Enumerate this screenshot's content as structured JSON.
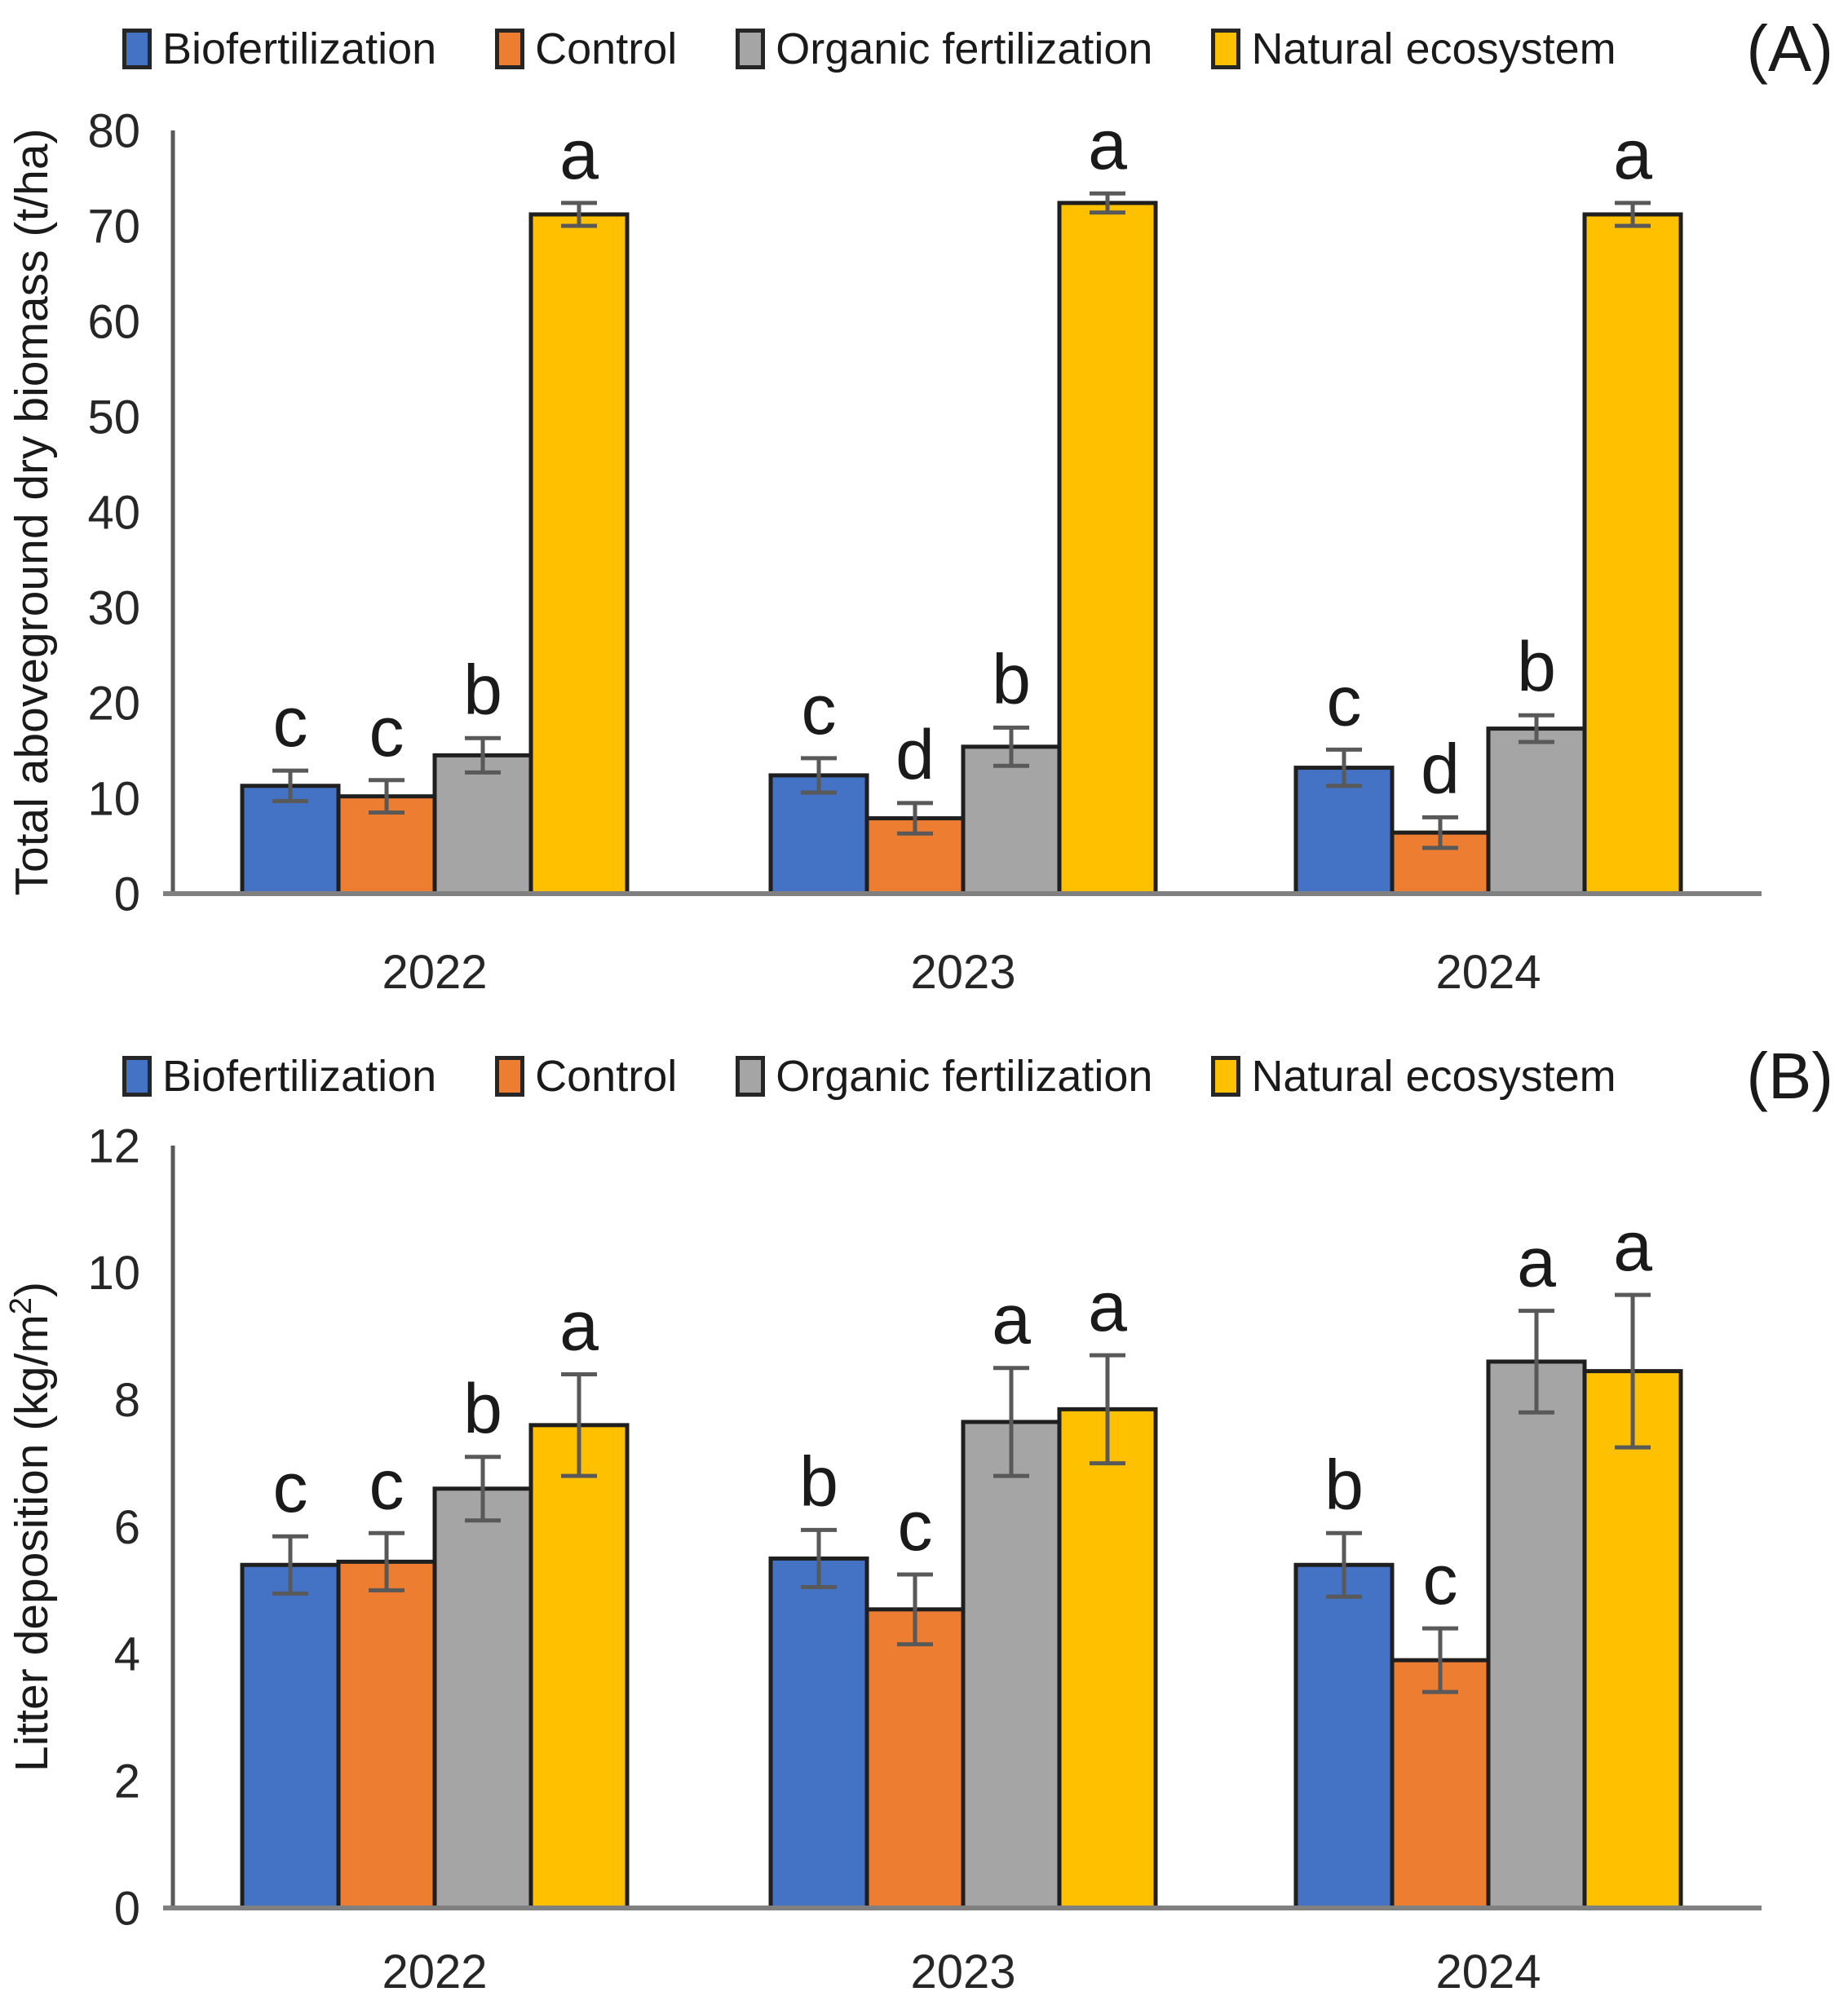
{
  "style": {
    "background": "#ffffff",
    "text_color": "#1a1a1a",
    "tick_color": "#262626",
    "y_axis_line_color": "#595959",
    "baseline_color": "#808080",
    "error_bar_color": "#595959",
    "bar_outline_color": "#1f1f1f"
  },
  "chart_data": [
    {
      "type": "bar",
      "panel_label": "(A)",
      "title": "",
      "xlabel": "",
      "ylabel": "Total aboveground dry biomass (t/ha)",
      "ylim": [
        0,
        80
      ],
      "yticks": [
        0,
        10,
        20,
        30,
        40,
        50,
        60,
        70,
        80
      ],
      "categories": [
        "2022",
        "2023",
        "2024"
      ],
      "grid": false,
      "legend_position": "top",
      "series": [
        {
          "name": "Biofertilization",
          "color": "#4472C4",
          "values": [
            11.3,
            12.4,
            13.2
          ],
          "errors": [
            1.6,
            1.8,
            1.9
          ],
          "letters": [
            "c",
            "c",
            "c"
          ]
        },
        {
          "name": "Control",
          "color": "#ED7D31",
          "values": [
            10.2,
            7.9,
            6.4
          ],
          "errors": [
            1.7,
            1.6,
            1.6
          ],
          "letters": [
            "c",
            "d",
            "d"
          ]
        },
        {
          "name": "Organic fertilization",
          "color": "#A5A5A5",
          "values": [
            14.5,
            15.4,
            17.3
          ],
          "errors": [
            1.8,
            2.0,
            1.4
          ],
          "letters": [
            "b",
            "b",
            "b"
          ]
        },
        {
          "name": "Natural ecosystem",
          "color": "#FFC000",
          "values": [
            71.2,
            72.4,
            71.2
          ],
          "errors": [
            1.2,
            1.0,
            1.2
          ],
          "letters": [
            "a",
            "a",
            "a"
          ]
        }
      ]
    },
    {
      "type": "bar",
      "panel_label": "(B)",
      "title": "",
      "xlabel": "",
      "ylabel": "Litter deposition (kg/m²)",
      "ylim": [
        0,
        12
      ],
      "yticks": [
        0,
        2,
        4,
        6,
        8,
        10,
        12
      ],
      "categories": [
        "2022",
        "2023",
        "2024"
      ],
      "grid": false,
      "legend_position": "top",
      "series": [
        {
          "name": "Biofertilization",
          "color": "#4472C4",
          "values": [
            5.4,
            5.5,
            5.4
          ],
          "errors": [
            0.45,
            0.45,
            0.5
          ],
          "letters": [
            "c",
            "b",
            "b"
          ]
        },
        {
          "name": "Control",
          "color": "#ED7D31",
          "values": [
            5.45,
            4.7,
            3.9
          ],
          "errors": [
            0.45,
            0.55,
            0.5
          ],
          "letters": [
            "c",
            "c",
            "c"
          ]
        },
        {
          "name": "Organic fertilization",
          "color": "#A5A5A5",
          "values": [
            6.6,
            7.65,
            8.6
          ],
          "errors": [
            0.5,
            0.85,
            0.8
          ],
          "letters": [
            "b",
            "a",
            "a"
          ]
        },
        {
          "name": "Natural ecosystem",
          "color": "#FFC000",
          "values": [
            7.6,
            7.85,
            8.45
          ],
          "errors": [
            0.8,
            0.85,
            1.2
          ],
          "letters": [
            "a",
            "a",
            "a"
          ]
        }
      ]
    }
  ]
}
